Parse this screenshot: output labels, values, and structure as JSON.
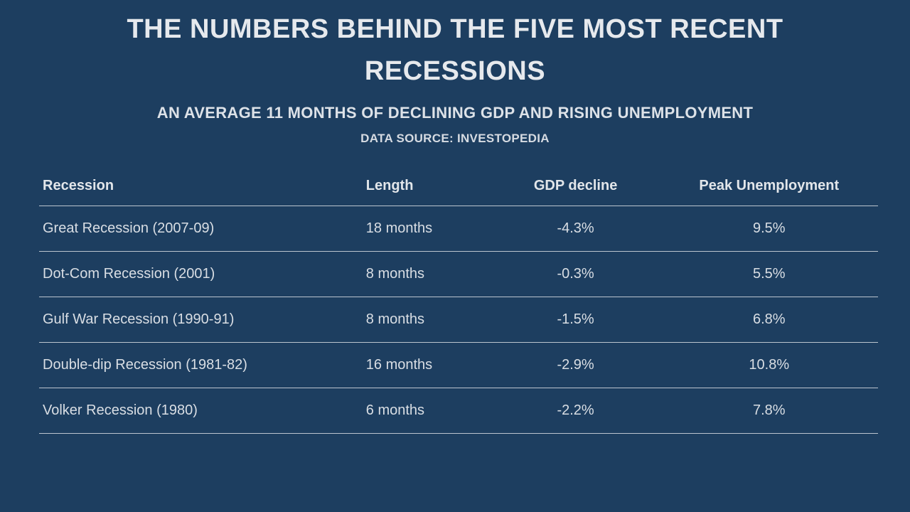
{
  "header": {
    "title": "THE NUMBERS BEHIND THE FIVE MOST RECENT RECESSIONS",
    "subtitle": "AN AVERAGE 11 MONTHS OF DECLINING GDP AND RISING UNEMPLOYMENT",
    "source": "DATA SOURCE: INVESTOPEDIA"
  },
  "colors": {
    "background": "#1d3e60",
    "text": "#dbe0e6",
    "divider": "#bcc5cf"
  },
  "chart_data": {
    "type": "table",
    "title": "THE NUMBERS BEHIND THE FIVE MOST RECENT RECESSIONS",
    "subtitle": "AN AVERAGE 11 MONTHS OF DECLINING GDP AND RISING UNEMPLOYMENT",
    "source": "DATA SOURCE: INVESTOPEDIA",
    "columns": [
      "Recession",
      "Length",
      "GDP decline",
      "Peak Unemployment"
    ],
    "rows": [
      [
        "Great Recession (2007-09)",
        "18 months",
        "-4.3%",
        "9.5%"
      ],
      [
        "Dot-Com Recession (2001)",
        "8 months",
        "-0.3%",
        "5.5%"
      ],
      [
        "Gulf War Recession (1990-91)",
        "8 months",
        "-1.5%",
        "6.8%"
      ],
      [
        "Double-dip Recession (1981-82)",
        "16 months",
        "-2.9%",
        "10.8%"
      ],
      [
        "Volker Recession (1980)",
        "6 months",
        "-2.2%",
        "7.8%"
      ]
    ]
  }
}
